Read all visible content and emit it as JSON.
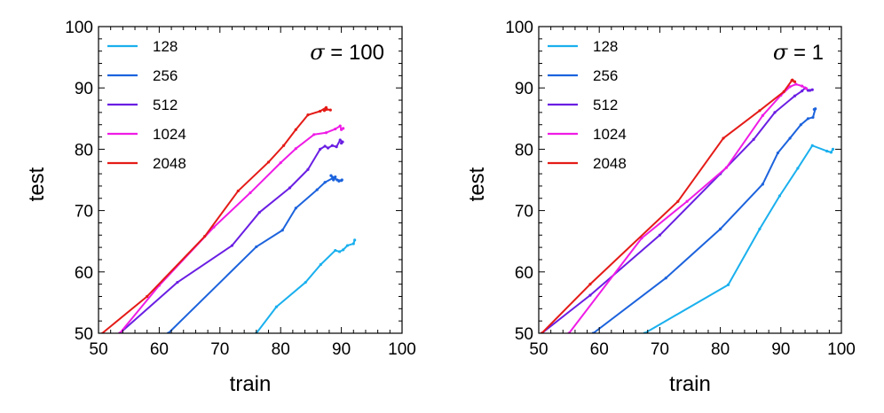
{
  "chart_data": [
    {
      "type": "line",
      "title": "",
      "xlabel": "train",
      "ylabel": "test",
      "xlim": [
        50,
        100
      ],
      "ylim": [
        50,
        100
      ],
      "xticks": [
        50,
        60,
        70,
        80,
        90,
        100
      ],
      "yticks": [
        50,
        60,
        70,
        80,
        90,
        100
      ],
      "annotation": {
        "symbol": "σ",
        "text": " = 100"
      },
      "legend_position": "top-left",
      "series": [
        {
          "name": "128",
          "color": "#1ab0ee",
          "x": [
            76.0,
            79.3,
            84.1,
            86.6,
            89.0,
            89.7,
            90.3,
            91.0,
            92.0,
            92.2
          ],
          "y": [
            50.0,
            54.3,
            58.3,
            61.2,
            63.5,
            63.3,
            63.6,
            64.3,
            64.6,
            65.2
          ]
        },
        {
          "name": "256",
          "color": "#1c63dd",
          "x": [
            61.5,
            76.0,
            80.3,
            82.5,
            86.0,
            87.3,
            89.0,
            88.7,
            88.3,
            89.3,
            90.0,
            89.6,
            90.1
          ],
          "y": [
            50.0,
            64.1,
            66.8,
            70.4,
            73.4,
            74.6,
            75.5,
            75.0,
            75.7,
            75.0,
            74.9,
            74.8,
            75.0
          ]
        },
        {
          "name": "512",
          "color": "#6a1ee3",
          "x": [
            53.5,
            63.0,
            72.0,
            76.5,
            81.5,
            84.5,
            86.5,
            87.3,
            87.8,
            88.5,
            89.2,
            89.8,
            90.2,
            90.0
          ],
          "y": [
            50.0,
            58.3,
            64.3,
            69.7,
            73.7,
            76.7,
            80.0,
            80.5,
            80.2,
            80.6,
            80.4,
            81.5,
            81.2,
            81.0
          ]
        },
        {
          "name": "1024",
          "color": "#ef1ce6",
          "x": [
            53.5,
            60.0,
            69.0,
            75.0,
            80.0,
            82.5,
            85.5,
            87.5,
            89.0,
            89.8,
            90.0,
            90.3
          ],
          "y": [
            50.0,
            57.8,
            67.3,
            72.9,
            77.8,
            80.1,
            82.4,
            82.7,
            83.3,
            83.8,
            83.2,
            83.4
          ]
        },
        {
          "name": "2048",
          "color": "#e41b17",
          "x": [
            50.5,
            58.0,
            67.5,
            73.0,
            78.0,
            80.5,
            82.5,
            84.5,
            86.5,
            87.5,
            87.2,
            87.6,
            88.2
          ],
          "y": [
            49.9,
            56.0,
            65.8,
            73.2,
            77.9,
            80.6,
            83.2,
            85.6,
            86.2,
            86.8,
            86.3,
            86.5,
            86.4
          ]
        }
      ]
    },
    {
      "type": "line",
      "title": "",
      "xlabel": "train",
      "ylabel": "test",
      "xlim": [
        50,
        100
      ],
      "ylim": [
        50,
        100
      ],
      "xticks": [
        50,
        60,
        70,
        80,
        90,
        100
      ],
      "yticks": [
        50,
        60,
        70,
        80,
        90,
        100
      ],
      "annotation": {
        "symbol": "σ",
        "text": " = 1"
      },
      "legend_position": "top-left",
      "series": [
        {
          "name": "128",
          "color": "#1ab0ee",
          "x": [
            67.5,
            81.3,
            86.5,
            89.8,
            92.8,
            95.2,
            97.6,
            98.3,
            98.6
          ],
          "y": [
            50.0,
            57.9,
            67.0,
            72.4,
            76.9,
            80.6,
            79.7,
            79.5,
            80.0
          ]
        },
        {
          "name": "256",
          "color": "#1c63dd",
          "x": [
            59.0,
            71.0,
            80.0,
            87.0,
            89.5,
            91.5,
            93.3,
            94.5,
            95.3,
            95.7,
            95.5
          ],
          "y": [
            50.0,
            59.0,
            67.0,
            74.3,
            79.4,
            81.8,
            84.0,
            85.0,
            85.2,
            86.6,
            86.5
          ]
        },
        {
          "name": "512",
          "color": "#6a1ee3",
          "x": [
            50.5,
            58.5,
            70.0,
            80.0,
            85.5,
            89.0,
            92.3,
            93.5,
            94.0,
            94.5,
            95.2,
            94.8
          ],
          "y": [
            50.0,
            56.2,
            66.0,
            76.0,
            81.6,
            86.0,
            88.7,
            89.5,
            90.0,
            89.6,
            89.7,
            89.6
          ]
        },
        {
          "name": "1024",
          "color": "#ef1ce6",
          "x": [
            55.0,
            67.0,
            74.5,
            81.0,
            87.0,
            90.0,
            91.5,
            92.5,
            93.5,
            94.2
          ],
          "y": [
            50.0,
            65.5,
            71.5,
            77.0,
            85.5,
            88.8,
            90.2,
            90.6,
            90.3,
            89.9
          ]
        },
        {
          "name": "2048",
          "color": "#e41b17",
          "x": [
            50.5,
            58.5,
            73.0,
            80.5,
            86.5,
            90.5,
            91.8,
            92.3,
            91.9
          ],
          "y": [
            50.0,
            58.0,
            71.5,
            81.8,
            86.3,
            89.4,
            91.2,
            91.0,
            91.3
          ]
        }
      ]
    }
  ]
}
